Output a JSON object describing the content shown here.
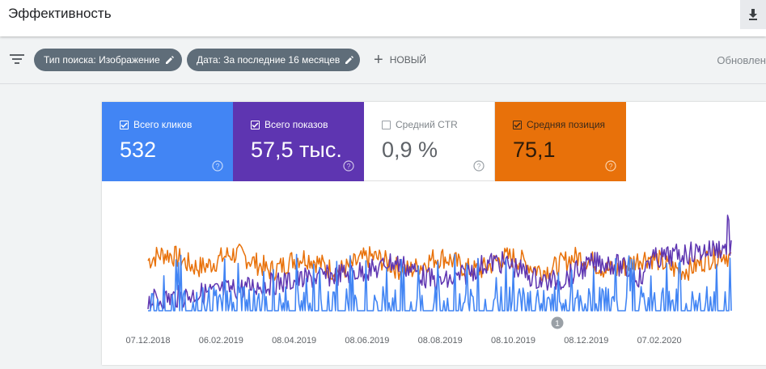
{
  "header": {
    "title": "Эффективность",
    "download_icon": "download-icon"
  },
  "filters": {
    "chips": [
      {
        "label": "Тип поиска: Изображение"
      },
      {
        "label": "Дата: За последние 16 месяцев"
      }
    ],
    "new_label": "НОВЫЙ",
    "updated_text": "Обновлен"
  },
  "metrics": [
    {
      "label": "Всего кликов",
      "value": "532",
      "checked": true,
      "color": "#4285f4"
    },
    {
      "label": "Всего показов",
      "value": "57,5 тыс.",
      "checked": true,
      "color": "#5e35b1"
    },
    {
      "label": "Средний CTR",
      "value": "0,9 %",
      "checked": false,
      "color": "#ffffff"
    },
    {
      "label": "Средняя позиция",
      "value": "75,1",
      "checked": true,
      "color": "#e8710a"
    }
  ],
  "chart_data": {
    "type": "line",
    "x_ticks": [
      "07.12.2018",
      "06.02.2019",
      "08.04.2019",
      "08.06.2019",
      "08.08.2019",
      "08.10.2019",
      "08.12.2019",
      "07.02.2020"
    ],
    "series": [
      {
        "name": "Средняя позиция",
        "color": "#e8710a"
      },
      {
        "name": "Всего показов",
        "color": "#5e35b1"
      },
      {
        "name": "Всего кликов",
        "color": "#4285f4"
      }
    ],
    "annotation": "1"
  }
}
